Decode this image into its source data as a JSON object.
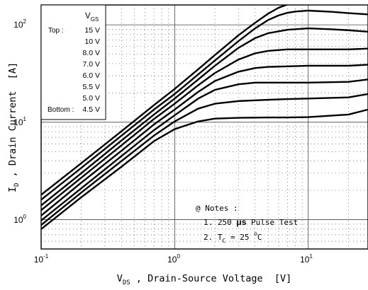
{
  "chart_data": {
    "type": "line",
    "xscale": "log",
    "yscale": "log",
    "xlim": [
      0.1,
      28
    ],
    "ylim": [
      0.5,
      160
    ],
    "grid": true,
    "xlabel": {
      "main": "V",
      "sub": "DS",
      "rest": " , Drain-Source Voltage  [V]"
    },
    "ylabel": {
      "main": "I",
      "sub": "D",
      "rest": " , Drain Current  [A]"
    },
    "xticks": [
      {
        "value": 0.1,
        "base": "10",
        "exp": "-1"
      },
      {
        "value": 1,
        "base": "10",
        "exp": "0"
      },
      {
        "value": 10,
        "base": "10",
        "exp": "1"
      }
    ],
    "yticks": [
      {
        "value": 1,
        "base": "10",
        "exp": "0"
      },
      {
        "value": 10,
        "base": "10",
        "exp": "1"
      },
      {
        "value": 100,
        "base": "10",
        "exp": "2"
      }
    ],
    "legend": {
      "header_main": "V",
      "header_sub": "GS",
      "top_label": "Top :",
      "bottom_label": "Bottom :",
      "entries": [
        "15 V",
        "10 V",
        "8.0 V",
        "7.0 V",
        "6.0 V",
        "5.5 V",
        "5.0 V",
        "4.5 V"
      ]
    },
    "notes": {
      "title": "@ Notes :",
      "line1_pre": "1. 250 ",
      "line1_unit": "μs",
      "line1_post": " Pulse Test",
      "line2_pre": "2. T",
      "line2_sub": "C",
      "line2_mid": " = 25 ",
      "line2_deg": "o",
      "line2_post": "C"
    },
    "series": [
      {
        "x": [
          0.1,
          0.2,
          0.4,
          0.7,
          1,
          1.5,
          2,
          3,
          4,
          5,
          6,
          7,
          8,
          10,
          15,
          20,
          28
        ],
        "y": [
          1.8,
          3.8,
          8.1,
          15,
          22,
          35,
          49,
          78,
          105,
          130,
          150,
          162,
          170,
          178,
          180,
          180,
          180
        ]
      },
      {
        "x": [
          0.1,
          0.2,
          0.4,
          0.7,
          1,
          1.5,
          2,
          3,
          4,
          5,
          6,
          7,
          8,
          10,
          15,
          20,
          28
        ],
        "y": [
          1.6,
          3.4,
          7.3,
          13.5,
          19.5,
          31,
          43,
          68,
          92,
          112,
          125,
          133,
          137,
          140,
          136,
          132,
          128
        ]
      },
      {
        "x": [
          0.1,
          0.2,
          0.4,
          0.7,
          1,
          1.5,
          2,
          3,
          4,
          5,
          7,
          10,
          15,
          20,
          28
        ],
        "y": [
          1.4,
          3,
          6.5,
          12,
          17.5,
          27.5,
          38,
          58,
          73,
          82,
          89,
          92,
          90,
          88,
          85
        ]
      },
      {
        "x": [
          0.1,
          0.2,
          0.4,
          0.7,
          1,
          1.5,
          2,
          3,
          4,
          5,
          7,
          10,
          20,
          28
        ],
        "y": [
          1.25,
          2.7,
          5.8,
          10.8,
          15.5,
          24,
          32,
          44,
          51,
          54,
          56,
          56,
          56,
          57
        ]
      },
      {
        "x": [
          0.1,
          0.2,
          0.4,
          0.7,
          1,
          1.5,
          2,
          3,
          4,
          5,
          7,
          10,
          20,
          28
        ],
        "y": [
          1.1,
          2.4,
          5.1,
          9.5,
          13.5,
          20.5,
          26.5,
          33,
          36,
          37,
          37.5,
          38,
          38,
          39
        ]
      },
      {
        "x": [
          0.1,
          0.2,
          0.4,
          0.7,
          1,
          1.5,
          2,
          3,
          4,
          5,
          7,
          10,
          20,
          28
        ],
        "y": [
          0.98,
          2.1,
          4.5,
          8.3,
          11.8,
          17.5,
          21.5,
          24.5,
          25.5,
          25.5,
          25.5,
          25.5,
          26,
          27.5
        ]
      },
      {
        "x": [
          0.1,
          0.2,
          0.4,
          0.7,
          1,
          1.5,
          2,
          3,
          5,
          7,
          10,
          20,
          28
        ],
        "y": [
          0.88,
          1.9,
          4,
          7.3,
          10.2,
          13.8,
          15.5,
          16.5,
          17,
          17.3,
          17.5,
          18,
          19.5
        ]
      },
      {
        "x": [
          0.1,
          0.2,
          0.4,
          0.7,
          1,
          1.5,
          2,
          3,
          5,
          7,
          10,
          20,
          28
        ],
        "y": [
          0.8,
          1.7,
          3.5,
          6.4,
          8.5,
          10.2,
          10.9,
          11.1,
          11.2,
          11.2,
          11.3,
          12,
          13.5
        ]
      }
    ]
  }
}
